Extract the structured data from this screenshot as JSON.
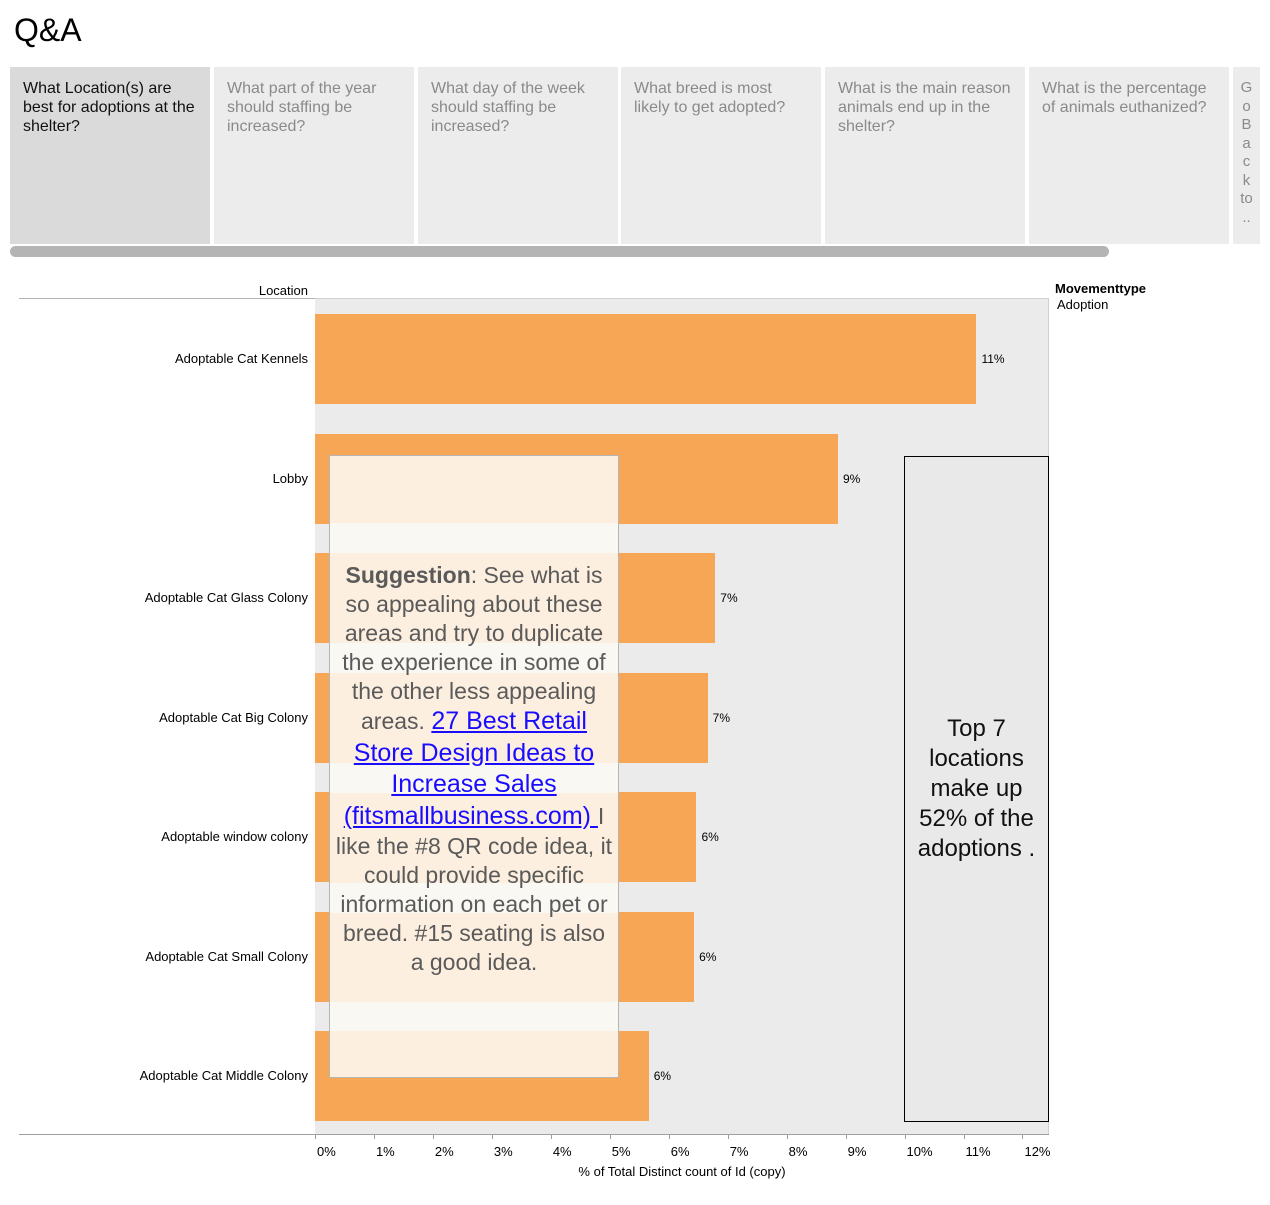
{
  "page": {
    "title": "Q&A"
  },
  "tabs": [
    {
      "label": "What Location(s) are best for adoptions at the shelter?",
      "active": true
    },
    {
      "label": "What part of the year should staffing be increased?",
      "active": false
    },
    {
      "label": "What day of the week should staffing be increased?",
      "active": false
    },
    {
      "label": "What breed is most likely to get adopted?",
      "active": false
    },
    {
      "label": "What is the main reason animals end up in the shelter?",
      "active": false
    },
    {
      "label": "What is the percentage of animals euthanized?",
      "active": false
    },
    {
      "label": "Go Back to ..",
      "active": false
    }
  ],
  "legend": {
    "title": "Movementtype",
    "item": "Adoption",
    "color": "#f7a656"
  },
  "suggestion": {
    "lead": "Suggestion",
    "text1": ": See what is so appealing about these areas and try to duplicate the experience in some of the other less appealing areas. ",
    "link": "27 Best Retail Store Design Ideas to Increase Sales (fitsmallbusiness.com) ",
    "text2": "I like the #8 QR code idea, it could provide specific information on each pet or breed. #15 seating is also a good idea."
  },
  "note": {
    "text": "Top 7 locations make up 52% of the adoptions ."
  },
  "chart_data": {
    "type": "bar",
    "orientation": "horizontal",
    "row_header": "Location",
    "categories": [
      "Adoptable Cat Kennels",
      "Lobby",
      "Adoptable Cat Glass Colony",
      "Adoptable Cat Big Colony",
      "Adoptable window colony",
      "Adoptable Cat Small Colony",
      "Adoptable Cat Middle Colony"
    ],
    "values": [
      11.22,
      8.87,
      6.79,
      6.66,
      6.47,
      6.43,
      5.66
    ],
    "value_labels": [
      "11%",
      "9%",
      "7%",
      "7%",
      "6%",
      "6%",
      "6%"
    ],
    "xlabel": "% of Total Distinct count of Id (copy)",
    "xlim": [
      0,
      12.45
    ],
    "ticks": [
      0,
      1,
      2,
      3,
      4,
      5,
      6,
      7,
      8,
      9,
      10,
      11,
      12
    ],
    "tick_labels": [
      "0%",
      "1%",
      "2%",
      "3%",
      "4%",
      "5%",
      "6%",
      "7%",
      "8%",
      "9%",
      "10%",
      "11%",
      "12%"
    ],
    "bar_color": "#f7a656"
  }
}
